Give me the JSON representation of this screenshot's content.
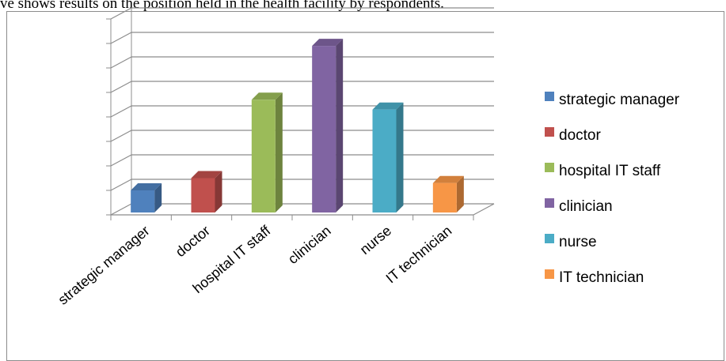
{
  "caption": "ve shows results on the position held in the health facility by respondents.",
  "chart_data": {
    "type": "bar",
    "style": "3d-column",
    "categories": [
      "strategic manager",
      "doctor",
      "hospital IT staff",
      "clinician",
      "nurse",
      "IT technician"
    ],
    "values": [
      1,
      1.5,
      4.7,
      6.9,
      4.3,
      1.3
    ],
    "ylim": [
      0,
      8
    ],
    "grid": true,
    "legend_position": "right",
    "colors": [
      "#4f81bd",
      "#c0504d",
      "#9bbb59",
      "#8064a2",
      "#4bacc6",
      "#f79646"
    ],
    "legend": [
      "strategic manager",
      "doctor",
      "hospital IT staff",
      "clinician",
      "nurse",
      "IT technician"
    ]
  }
}
